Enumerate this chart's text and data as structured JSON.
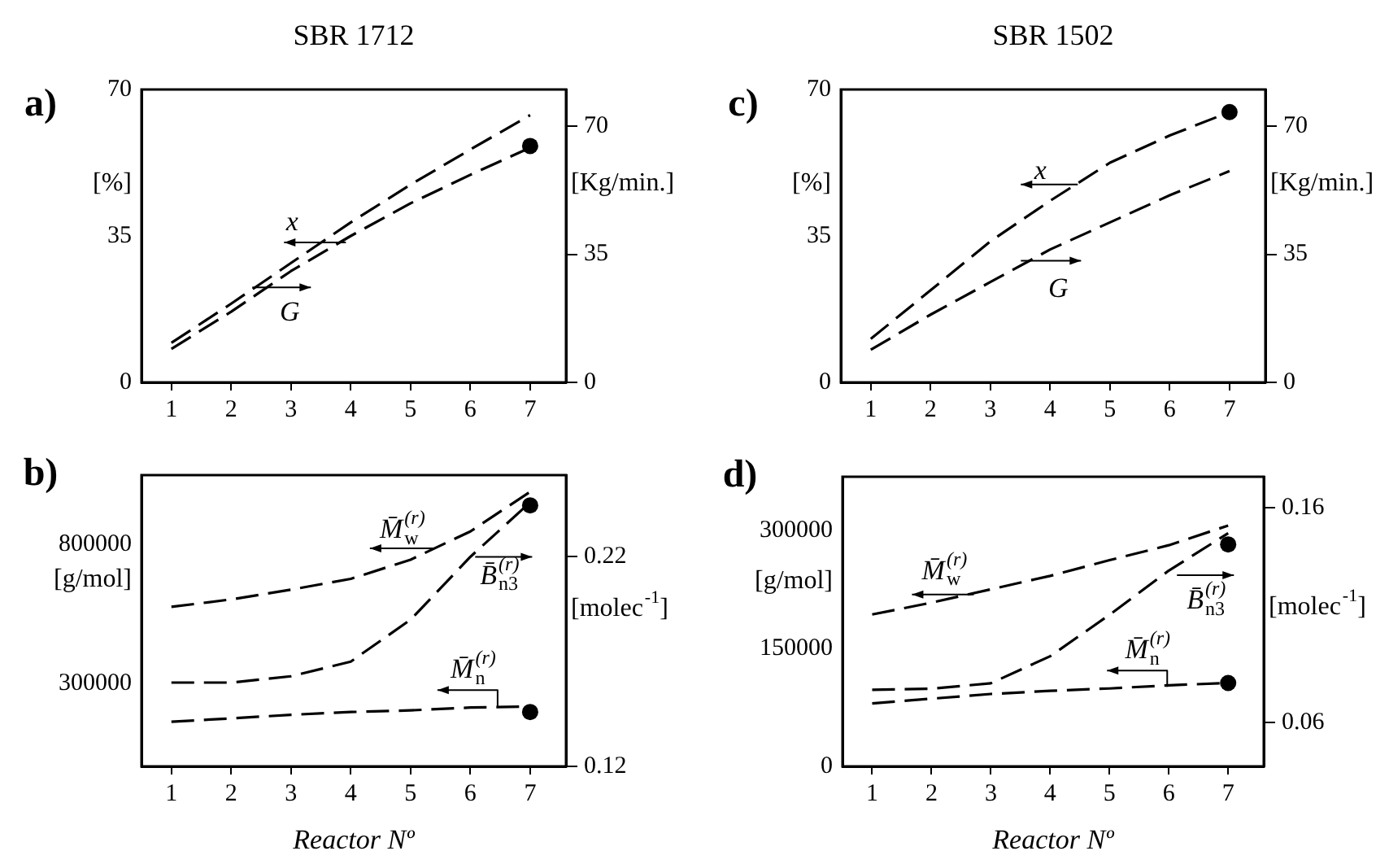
{
  "chart_data": [
    {
      "type": "line",
      "title": "SBR 1712",
      "ylabel": "[%]",
      "y2label": "[Kg/min.]",
      "x": [
        1,
        2,
        3,
        4,
        5,
        6,
        7
      ],
      "xlim": [
        0.5,
        7.6
      ],
      "xticks": [
        1,
        2,
        3,
        4,
        5,
        6,
        7
      ],
      "ylim": [
        0,
        70
      ],
      "yticks": [
        0,
        35,
        70
      ],
      "y2lim": [
        0,
        80
      ],
      "y2ticks": [
        0,
        35,
        70
      ],
      "line_style": "dashed",
      "marker": "none",
      "series": [
        {
          "color": "#000000",
          "values": [
            8.0,
            16.9,
            26.6,
            35.0,
            42.8,
            49.6,
            56.1
          ]
        },
        {
          "color": "#000000",
          "axis": "y2",
          "values": [
            10.8,
            21.5,
            32.6,
            43.7,
            54.0,
            63.6,
            73.0
          ]
        },
        {
          "type": "scatter",
          "marker": "circle",
          "color": "#000000",
          "values": [
            null,
            null,
            null,
            null,
            null,
            null,
            56.5
          ]
        }
      ],
      "annotations": [
        "a)",
        {
          "text": "x",
          "x": 4,
          "y": 35.0
        },
        {
          "text": "G",
          "x": 2,
          "y": 18.8
        }
      ]
    },
    {
      "type": "line",
      "title": "SBR 1502",
      "ylabel": "[%]",
      "y2label": "[Kg/min.]",
      "x": [
        1,
        2,
        3,
        4,
        5,
        6,
        7
      ],
      "xlim": [
        0.5,
        7.6
      ],
      "xticks": [
        1,
        2,
        3,
        4,
        5,
        6,
        7
      ],
      "ylim": [
        0,
        70
      ],
      "yticks": [
        0,
        35,
        70
      ],
      "y2lim": [
        0,
        80
      ],
      "y2ticks": [
        0,
        35,
        70
      ],
      "line_style": "dashed",
      "marker": "none",
      "series": [
        {
          "color": "#000000",
          "values": [
            10.4,
            22.0,
            33.7,
            43.4,
            52.5,
            59.0,
            64.6
          ]
        },
        {
          "color": "#000000",
          "axis": "y2",
          "values": [
            8.9,
            18.5,
            27.4,
            36.3,
            43.7,
            51.1,
            57.7
          ]
        },
        {
          "type": "scatter",
          "marker": "circle",
          "color": "#000000",
          "values": [
            null,
            null,
            null,
            null,
            null,
            null,
            64.6
          ]
        }
      ],
      "annotations": [
        "c)",
        {
          "text": "x",
          "x": 4,
          "y": 43.4
        },
        {
          "text": "G",
          "x": 4,
          "y": 31.8
        }
      ]
    },
    {
      "type": "line",
      "xlabel": "Reactor Nº",
      "ylabel": "[g/mol]",
      "y2label": "[molec$^{-1}$]",
      "x": [
        1,
        2,
        3,
        4,
        5,
        6,
        7
      ],
      "xlim": [
        0.5,
        7.6
      ],
      "xticks": [
        1,
        2,
        3,
        4,
        5,
        6,
        7
      ],
      "ylim": [
        0,
        1050000
      ],
      "yticks": [
        300000,
        800000
      ],
      "y2lim": [
        0.12,
        0.259
      ],
      "y2ticks": [
        0.12,
        0.22
      ],
      "line_style": "dashed",
      "marker": "none",
      "series": [
        {
          "color": "#000000",
          "values": [
            575000,
            602000,
            637000,
            676000,
            745000,
            847000,
            990000
          ]
        },
        {
          "color": "#000000",
          "axis": "y2",
          "values": [
            0.16,
            0.16,
            0.163,
            0.17,
            0.19,
            0.22,
            0.246
          ]
        },
        {
          "color": "#000000",
          "values": [
            161000,
            173000,
            186000,
            196000,
            202000,
            212000,
            216000
          ]
        },
        {
          "type": "scatter",
          "marker": "circle",
          "color": "#000000",
          "values": [
            null,
            null,
            null,
            null,
            null,
            null,
            941000
          ]
        },
        {
          "type": "scatter",
          "marker": "circle",
          "color": "#000000",
          "values": [
            null,
            null,
            null,
            null,
            null,
            null,
            196000
          ]
        }
      ],
      "annotations": [
        "b)",
        {
          "text": "M̄$_{w}$$^{(r)}$",
          "x": 5,
          "y": 745000
        },
        {
          "text": "B̄$_{n3}$$^{(r)}$",
          "x": 6,
          "y": 755000
        },
        {
          "text": "M̄$_{n}$$^{(r)}$",
          "x": 7,
          "y": 216000
        }
      ]
    },
    {
      "type": "line",
      "xlabel": "Reactor Nº",
      "ylabel": "[g/mol]",
      "y2label": "[molec$^{-1}$]",
      "x": [
        1,
        2,
        3,
        4,
        5,
        6,
        7
      ],
      "xlim": [
        0.5,
        7.6
      ],
      "xticks": [
        1,
        2,
        3,
        4,
        5,
        6,
        7
      ],
      "ylim": [
        0,
        368000
      ],
      "yticks": [
        0,
        150000,
        300000
      ],
      "y2lim": [
        0.0394,
        0.1743
      ],
      "y2ticks": [
        0.06,
        0.16
      ],
      "line_style": "dashed",
      "marker": "none",
      "series": [
        {
          "color": "#000000",
          "values": [
            193000,
            208000,
            225000,
            242000,
            262000,
            281000,
            306000
          ]
        },
        {
          "color": "#000000",
          "axis": "y2",
          "values": [
            0.0751,
            0.0756,
            0.0781,
            0.0907,
            0.11,
            0.1306,
            0.148
          ]
        },
        {
          "color": "#000000",
          "values": [
            80000,
            86000,
            92000,
            96000,
            99000,
            103000,
            106000
          ]
        },
        {
          "type": "scatter",
          "marker": "circle",
          "color": "#000000",
          "values": [
            null,
            null,
            null,
            null,
            null,
            null,
            282000
          ]
        },
        {
          "type": "scatter",
          "marker": "circle",
          "color": "#000000",
          "values": [
            null,
            null,
            null,
            null,
            null,
            null,
            106000
          ]
        }
      ],
      "annotations": [
        "d)",
        {
          "text": "M̄$_{w}$$^{(r)}$",
          "x": 2,
          "y": 208000
        },
        {
          "text": "B̄$_{n3}$$^{(r)}$",
          "x": 6,
          "y": 249000
        },
        {
          "text": "M̄$_{n}$$^{(r)}$",
          "x": 6,
          "y": 103000
        }
      ]
    }
  ]
}
